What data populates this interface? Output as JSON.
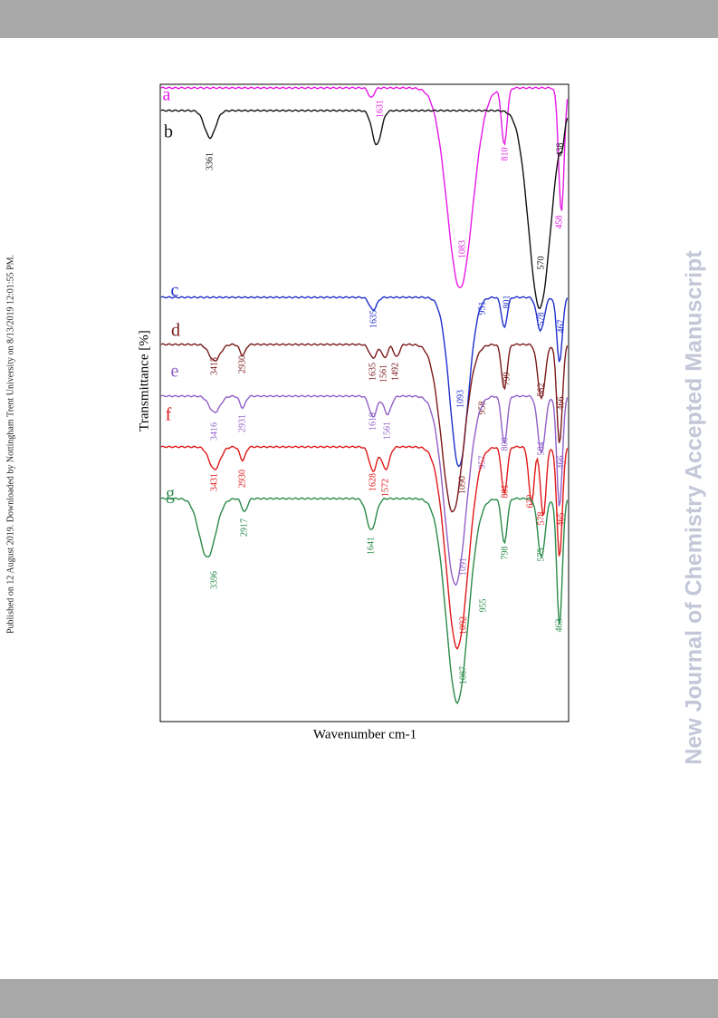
{
  "side_note": "Published on 12 August 2019. Downloaded by Nottingham Trent University on 8/13/2019 12:01:55 PM.",
  "watermark": "New Journal of Chemistry Accepted Manuscript",
  "figure": {
    "y_label": "Transmittance [%]",
    "x_label": "Wavenumber cm-1",
    "curves": [
      {
        "letter": "a",
        "color": "#e619e6",
        "peaks": [
          "1631",
          "1083",
          "810",
          "458"
        ]
      },
      {
        "letter": "b",
        "color": "#111111",
        "peaks": [
          "3361",
          "570",
          "438"
        ]
      },
      {
        "letter": "c",
        "color": "#1f2fcc",
        "peaks": [
          "1635",
          "1093",
          "951",
          "801",
          "578",
          "467"
        ]
      },
      {
        "letter": "d",
        "color": "#7a1a1a",
        "peaks": [
          "3415",
          "2930",
          "1635",
          "1561",
          "1492",
          "1090",
          "958",
          "799",
          "582",
          "466"
        ]
      },
      {
        "letter": "e",
        "color": "#9060c8",
        "peaks": [
          "3416",
          "2931",
          "1619",
          "1561",
          "1091",
          "957",
          "800",
          "584",
          "466"
        ]
      },
      {
        "letter": "f",
        "color": "#e01818",
        "peaks": [
          "3431",
          "2930",
          "1628",
          "1572",
          "1092",
          "801",
          "632",
          "578",
          "465"
        ]
      },
      {
        "letter": "g",
        "color": "#2a8a4a",
        "peaks": [
          "3396",
          "2917",
          "1641",
          "1087",
          "955",
          "798",
          "575",
          "463"
        ]
      }
    ]
  }
}
